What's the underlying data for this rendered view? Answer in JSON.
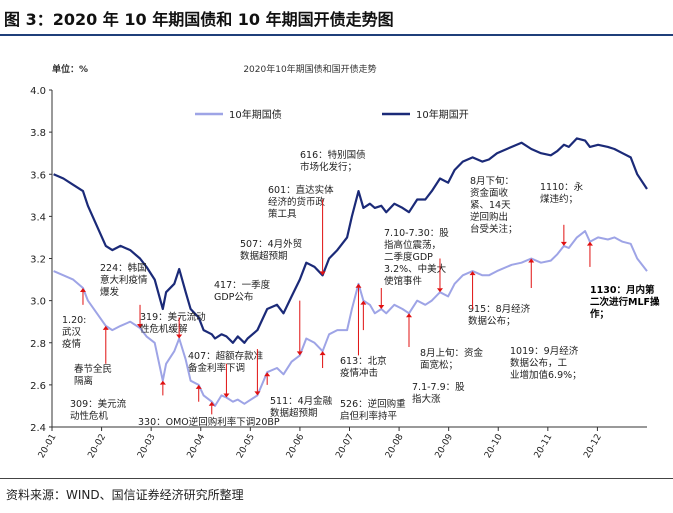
{
  "figure": {
    "title": "图 3：2020 年 10 年期国债和 10 年期国开债走势图",
    "source": "资料来源：WIND、国信证券经济研究所整理"
  },
  "chart_data": {
    "type": "line",
    "title": "2020年10年期国债和国开债走势",
    "unit": "单位：%",
    "ylim": [
      2.4,
      4.0
    ],
    "yticks": [
      "2.4",
      "2.6",
      "2.8",
      "3.0",
      "3.2",
      "3.4",
      "3.6",
      "3.8",
      "4.0"
    ],
    "xticks": [
      "20-01",
      "20-02",
      "20-03",
      "20-04",
      "20-05",
      "20-06",
      "20-07",
      "20-08",
      "20-09",
      "20-10",
      "20-11",
      "20-12"
    ],
    "grid": false,
    "legend": "top",
    "series": [
      {
        "name": "10年期国债",
        "color": "#9ea4e6",
        "points": [
          [
            "2020-01-02",
            3.14
          ],
          [
            "2020-01-08",
            3.12
          ],
          [
            "2020-01-14",
            3.1
          ],
          [
            "2020-01-20",
            3.06
          ],
          [
            "2020-01-23",
            3.0
          ],
          [
            "2020-02-03",
            2.88
          ],
          [
            "2020-02-07",
            2.86
          ],
          [
            "2020-02-12",
            2.88
          ],
          [
            "2020-02-18",
            2.9
          ],
          [
            "2020-02-24",
            2.87
          ],
          [
            "2020-02-28",
            2.83
          ],
          [
            "2020-03-04",
            2.8
          ],
          [
            "2020-03-09",
            2.62
          ],
          [
            "2020-03-11",
            2.7
          ],
          [
            "2020-03-16",
            2.76
          ],
          [
            "2020-03-19",
            2.82
          ],
          [
            "2020-03-23",
            2.72
          ],
          [
            "2020-03-26",
            2.62
          ],
          [
            "2020-03-31",
            2.6
          ],
          [
            "2020-04-03",
            2.55
          ],
          [
            "2020-04-08",
            2.52
          ],
          [
            "2020-04-10",
            2.5
          ],
          [
            "2020-04-14",
            2.55
          ],
          [
            "2020-04-17",
            2.54
          ],
          [
            "2020-04-21",
            2.52
          ],
          [
            "2020-04-24",
            2.53
          ],
          [
            "2020-04-28",
            2.51
          ],
          [
            "2020-04-30",
            2.52
          ],
          [
            "2020-05-06",
            2.55
          ],
          [
            "2020-05-12",
            2.66
          ],
          [
            "2020-05-18",
            2.68
          ],
          [
            "2020-05-22",
            2.65
          ],
          [
            "2020-05-27",
            2.71
          ],
          [
            "2020-06-01",
            2.74
          ],
          [
            "2020-06-05",
            2.82
          ],
          [
            "2020-06-10",
            2.8
          ],
          [
            "2020-06-15",
            2.76
          ],
          [
            "2020-06-19",
            2.84
          ],
          [
            "2020-06-24",
            2.86
          ],
          [
            "2020-06-30",
            2.86
          ],
          [
            "2020-07-03",
            2.96
          ],
          [
            "2020-07-07",
            3.08
          ],
          [
            "2020-07-10",
            3.0
          ],
          [
            "2020-07-14",
            2.98
          ],
          [
            "2020-07-17",
            2.94
          ],
          [
            "2020-07-21",
            2.96
          ],
          [
            "2020-07-24",
            2.94
          ],
          [
            "2020-07-29",
            2.98
          ],
          [
            "2020-08-03",
            2.96
          ],
          [
            "2020-08-07",
            2.94
          ],
          [
            "2020-08-12",
            3.0
          ],
          [
            "2020-08-17",
            2.98
          ],
          [
            "2020-08-21",
            3.0
          ],
          [
            "2020-08-26",
            3.04
          ],
          [
            "2020-08-31",
            3.02
          ],
          [
            "2020-09-04",
            3.08
          ],
          [
            "2020-09-09",
            3.12
          ],
          [
            "2020-09-15",
            3.14
          ],
          [
            "2020-09-21",
            3.12
          ],
          [
            "2020-09-25",
            3.12
          ],
          [
            "2020-09-30",
            3.14
          ],
          [
            "2020-10-09",
            3.17
          ],
          [
            "2020-10-15",
            3.18
          ],
          [
            "2020-10-21",
            3.2
          ],
          [
            "2020-10-27",
            3.18
          ],
          [
            "2020-11-02",
            3.19
          ],
          [
            "2020-11-06",
            3.22
          ],
          [
            "2020-11-10",
            3.26
          ],
          [
            "2020-11-13",
            3.25
          ],
          [
            "2020-11-18",
            3.3
          ],
          [
            "2020-11-23",
            3.33
          ],
          [
            "2020-11-26",
            3.28
          ],
          [
            "2020-12-01",
            3.3
          ],
          [
            "2020-12-07",
            3.29
          ],
          [
            "2020-12-11",
            3.3
          ],
          [
            "2020-12-16",
            3.28
          ],
          [
            "2020-12-21",
            3.27
          ],
          [
            "2020-12-25",
            3.2
          ],
          [
            "2020-12-31",
            3.14
          ]
        ]
      },
      {
        "name": "10年期国开",
        "color": "#1b2a78",
        "points": [
          [
            "2020-01-02",
            3.6
          ],
          [
            "2020-01-08",
            3.58
          ],
          [
            "2020-01-14",
            3.55
          ],
          [
            "2020-01-20",
            3.52
          ],
          [
            "2020-01-23",
            3.45
          ],
          [
            "2020-02-03",
            3.26
          ],
          [
            "2020-02-07",
            3.24
          ],
          [
            "2020-02-12",
            3.26
          ],
          [
            "2020-02-18",
            3.24
          ],
          [
            "2020-02-24",
            3.2
          ],
          [
            "2020-02-28",
            3.16
          ],
          [
            "2020-03-04",
            3.1
          ],
          [
            "2020-03-09",
            2.96
          ],
          [
            "2020-03-11",
            3.04
          ],
          [
            "2020-03-16",
            3.08
          ],
          [
            "2020-03-19",
            3.15
          ],
          [
            "2020-03-23",
            3.04
          ],
          [
            "2020-03-26",
            2.96
          ],
          [
            "2020-03-31",
            2.92
          ],
          [
            "2020-04-03",
            2.86
          ],
          [
            "2020-04-08",
            2.84
          ],
          [
            "2020-04-10",
            2.82
          ],
          [
            "2020-04-14",
            2.84
          ],
          [
            "2020-04-17",
            2.83
          ],
          [
            "2020-04-21",
            2.8
          ],
          [
            "2020-04-24",
            2.83
          ],
          [
            "2020-04-28",
            2.8
          ],
          [
            "2020-04-30",
            2.82
          ],
          [
            "2020-05-06",
            2.86
          ],
          [
            "2020-05-12",
            2.96
          ],
          [
            "2020-05-18",
            2.98
          ],
          [
            "2020-05-22",
            2.94
          ],
          [
            "2020-05-27",
            3.02
          ],
          [
            "2020-06-01",
            3.1
          ],
          [
            "2020-06-05",
            3.18
          ],
          [
            "2020-06-10",
            3.16
          ],
          [
            "2020-06-15",
            3.12
          ],
          [
            "2020-06-19",
            3.2
          ],
          [
            "2020-06-24",
            3.24
          ],
          [
            "2020-06-30",
            3.3
          ],
          [
            "2020-07-03",
            3.4
          ],
          [
            "2020-07-07",
            3.52
          ],
          [
            "2020-07-10",
            3.44
          ],
          [
            "2020-07-14",
            3.46
          ],
          [
            "2020-07-17",
            3.44
          ],
          [
            "2020-07-21",
            3.45
          ],
          [
            "2020-07-24",
            3.42
          ],
          [
            "2020-07-29",
            3.46
          ],
          [
            "2020-08-03",
            3.44
          ],
          [
            "2020-08-07",
            3.42
          ],
          [
            "2020-08-12",
            3.48
          ],
          [
            "2020-08-17",
            3.48
          ],
          [
            "2020-08-21",
            3.52
          ],
          [
            "2020-08-26",
            3.58
          ],
          [
            "2020-08-31",
            3.56
          ],
          [
            "2020-09-04",
            3.62
          ],
          [
            "2020-09-09",
            3.66
          ],
          [
            "2020-09-15",
            3.68
          ],
          [
            "2020-09-21",
            3.66
          ],
          [
            "2020-09-25",
            3.67
          ],
          [
            "2020-09-30",
            3.7
          ],
          [
            "2020-10-09",
            3.73
          ],
          [
            "2020-10-15",
            3.75
          ],
          [
            "2020-10-21",
            3.72
          ],
          [
            "2020-10-27",
            3.7
          ],
          [
            "2020-11-02",
            3.69
          ],
          [
            "2020-11-06",
            3.71
          ],
          [
            "2020-11-10",
            3.74
          ],
          [
            "2020-11-13",
            3.73
          ],
          [
            "2020-11-18",
            3.77
          ],
          [
            "2020-11-23",
            3.76
          ],
          [
            "2020-11-26",
            3.73
          ],
          [
            "2020-12-01",
            3.74
          ],
          [
            "2020-12-07",
            3.73
          ],
          [
            "2020-12-11",
            3.72
          ],
          [
            "2020-12-16",
            3.7
          ],
          [
            "2020-12-21",
            3.68
          ],
          [
            "2020-12-25",
            3.6
          ],
          [
            "2020-12-31",
            3.53
          ]
        ]
      }
    ],
    "annotations": [
      {
        "text": "1.20:\n武汉\n疫情",
        "date": "2020-01-20",
        "value": 3.06,
        "arrow": "up"
      },
      {
        "text": "春节全民\n隔离",
        "date": "2020-02-03",
        "value": 2.88,
        "arrow": "up"
      },
      {
        "text": "224：韩国\n意大利疫情\n爆发",
        "date": "2020-02-24",
        "value": 2.87,
        "arrow": "down"
      },
      {
        "text": "309：美元流\n动性危机",
        "date": "2020-03-09",
        "value": 2.62,
        "arrow": "up"
      },
      {
        "text": "319：美元流动\n性危机缓解",
        "date": "2020-03-19",
        "value": 2.82,
        "arrow": "down"
      },
      {
        "text": "330：OMO逆回购利率下调20BP",
        "date": "2020-03-31",
        "value": 2.6,
        "arrow": "up"
      },
      {
        "text": "407：超额存款准\n备金利率下调",
        "date": "2020-04-08",
        "value": 2.52,
        "arrow": "up"
      },
      {
        "text": "417：一季度\nGDP公布",
        "date": "2020-04-17",
        "value": 2.54,
        "arrow": "down"
      },
      {
        "text": "507：4月外贸\n数据超预期",
        "date": "2020-05-06",
        "value": 2.55,
        "arrow": "down"
      },
      {
        "text": "511：4月金融\n数据超预期",
        "date": "2020-05-12",
        "value": 2.66,
        "arrow": "up"
      },
      {
        "text": "601：直达实体\n经济的货币政\n策工具",
        "date": "2020-06-01",
        "value": 2.74,
        "arrow": "down"
      },
      {
        "text": "613：北京\n疫情冲击",
        "date": "2020-06-15",
        "value": 2.76,
        "arrow": "up"
      },
      {
        "text": "616：特别国债\n市场化发行；",
        "date": "2020-06-15",
        "value": 3.12,
        "arrow": "down"
      },
      {
        "text": "526：逆回购重\n启但利率持平",
        "date": "2020-07-10",
        "value": 3.0,
        "arrow": "up"
      },
      {
        "text": "7.10-7.30：股\n指高位震荡，\n二季度GDP\n3.2%、中美大\n使馆事件",
        "date": "2020-07-21",
        "value": 2.96,
        "arrow": "down"
      },
      {
        "text": "7.1-7.9：股\n指大涨",
        "date": "2020-07-07",
        "value": 3.08,
        "arrow": "up"
      },
      {
        "text": "8月上旬：资金\n面宽松；",
        "date": "2020-08-07",
        "value": 2.94,
        "arrow": "up"
      },
      {
        "text": "915：8月经济\n数据公布；",
        "date": "2020-09-15",
        "value": 3.14,
        "arrow": "up"
      },
      {
        "text": "8月下旬：\n资金面收\n紧、14天\n逆回购出\n台受关注；",
        "date": "2020-08-26",
        "value": 3.04,
        "arrow": "down"
      },
      {
        "text": "1019：9月经济\n数据公布，工\n业增加值6.9%；",
        "date": "2020-10-21",
        "value": 3.2,
        "arrow": "up"
      },
      {
        "text": "1110：永\n煤违约；",
        "date": "2020-11-10",
        "value": 3.26,
        "arrow": "down"
      },
      {
        "text": "1130：月内第\n二次进行MLF操\n作；",
        "date": "2020-11-26",
        "value": 3.28,
        "arrow": "up"
      }
    ]
  }
}
